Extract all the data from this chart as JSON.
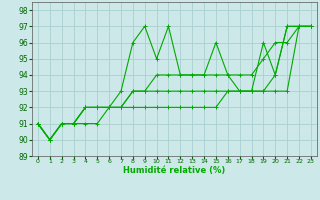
{
  "xlabel": "Humidité relative (%)",
  "ylabel": "",
  "xlim": [
    -0.5,
    23.5
  ],
  "ylim": [
    89,
    98.5
  ],
  "yticks": [
    89,
    90,
    91,
    92,
    93,
    94,
    95,
    96,
    97,
    98
  ],
  "xticks": [
    0,
    1,
    2,
    3,
    4,
    5,
    6,
    7,
    8,
    9,
    10,
    11,
    12,
    13,
    14,
    15,
    16,
    17,
    18,
    19,
    20,
    21,
    22,
    23
  ],
  "background_color": "#cce8e8",
  "grid_color": "#aacfcf",
  "line_color": "#00aa00",
  "lines": [
    [
      91,
      90,
      91,
      91,
      92,
      92,
      92,
      93,
      96,
      97,
      95,
      97,
      94,
      94,
      94,
      96,
      94,
      93,
      93,
      96,
      94,
      97,
      97,
      97
    ],
    [
      91,
      90,
      91,
      91,
      91,
      91,
      92,
      92,
      93,
      93,
      94,
      94,
      94,
      94,
      94,
      94,
      94,
      94,
      94,
      95,
      96,
      96,
      97,
      97
    ],
    [
      91,
      90,
      91,
      91,
      92,
      92,
      92,
      92,
      93,
      93,
      93,
      93,
      93,
      93,
      93,
      93,
      93,
      93,
      93,
      93,
      93,
      93,
      97,
      97
    ],
    [
      91,
      90,
      91,
      91,
      92,
      92,
      92,
      92,
      92,
      92,
      92,
      92,
      92,
      92,
      92,
      92,
      93,
      93,
      93,
      93,
      94,
      97,
      97,
      97
    ]
  ]
}
